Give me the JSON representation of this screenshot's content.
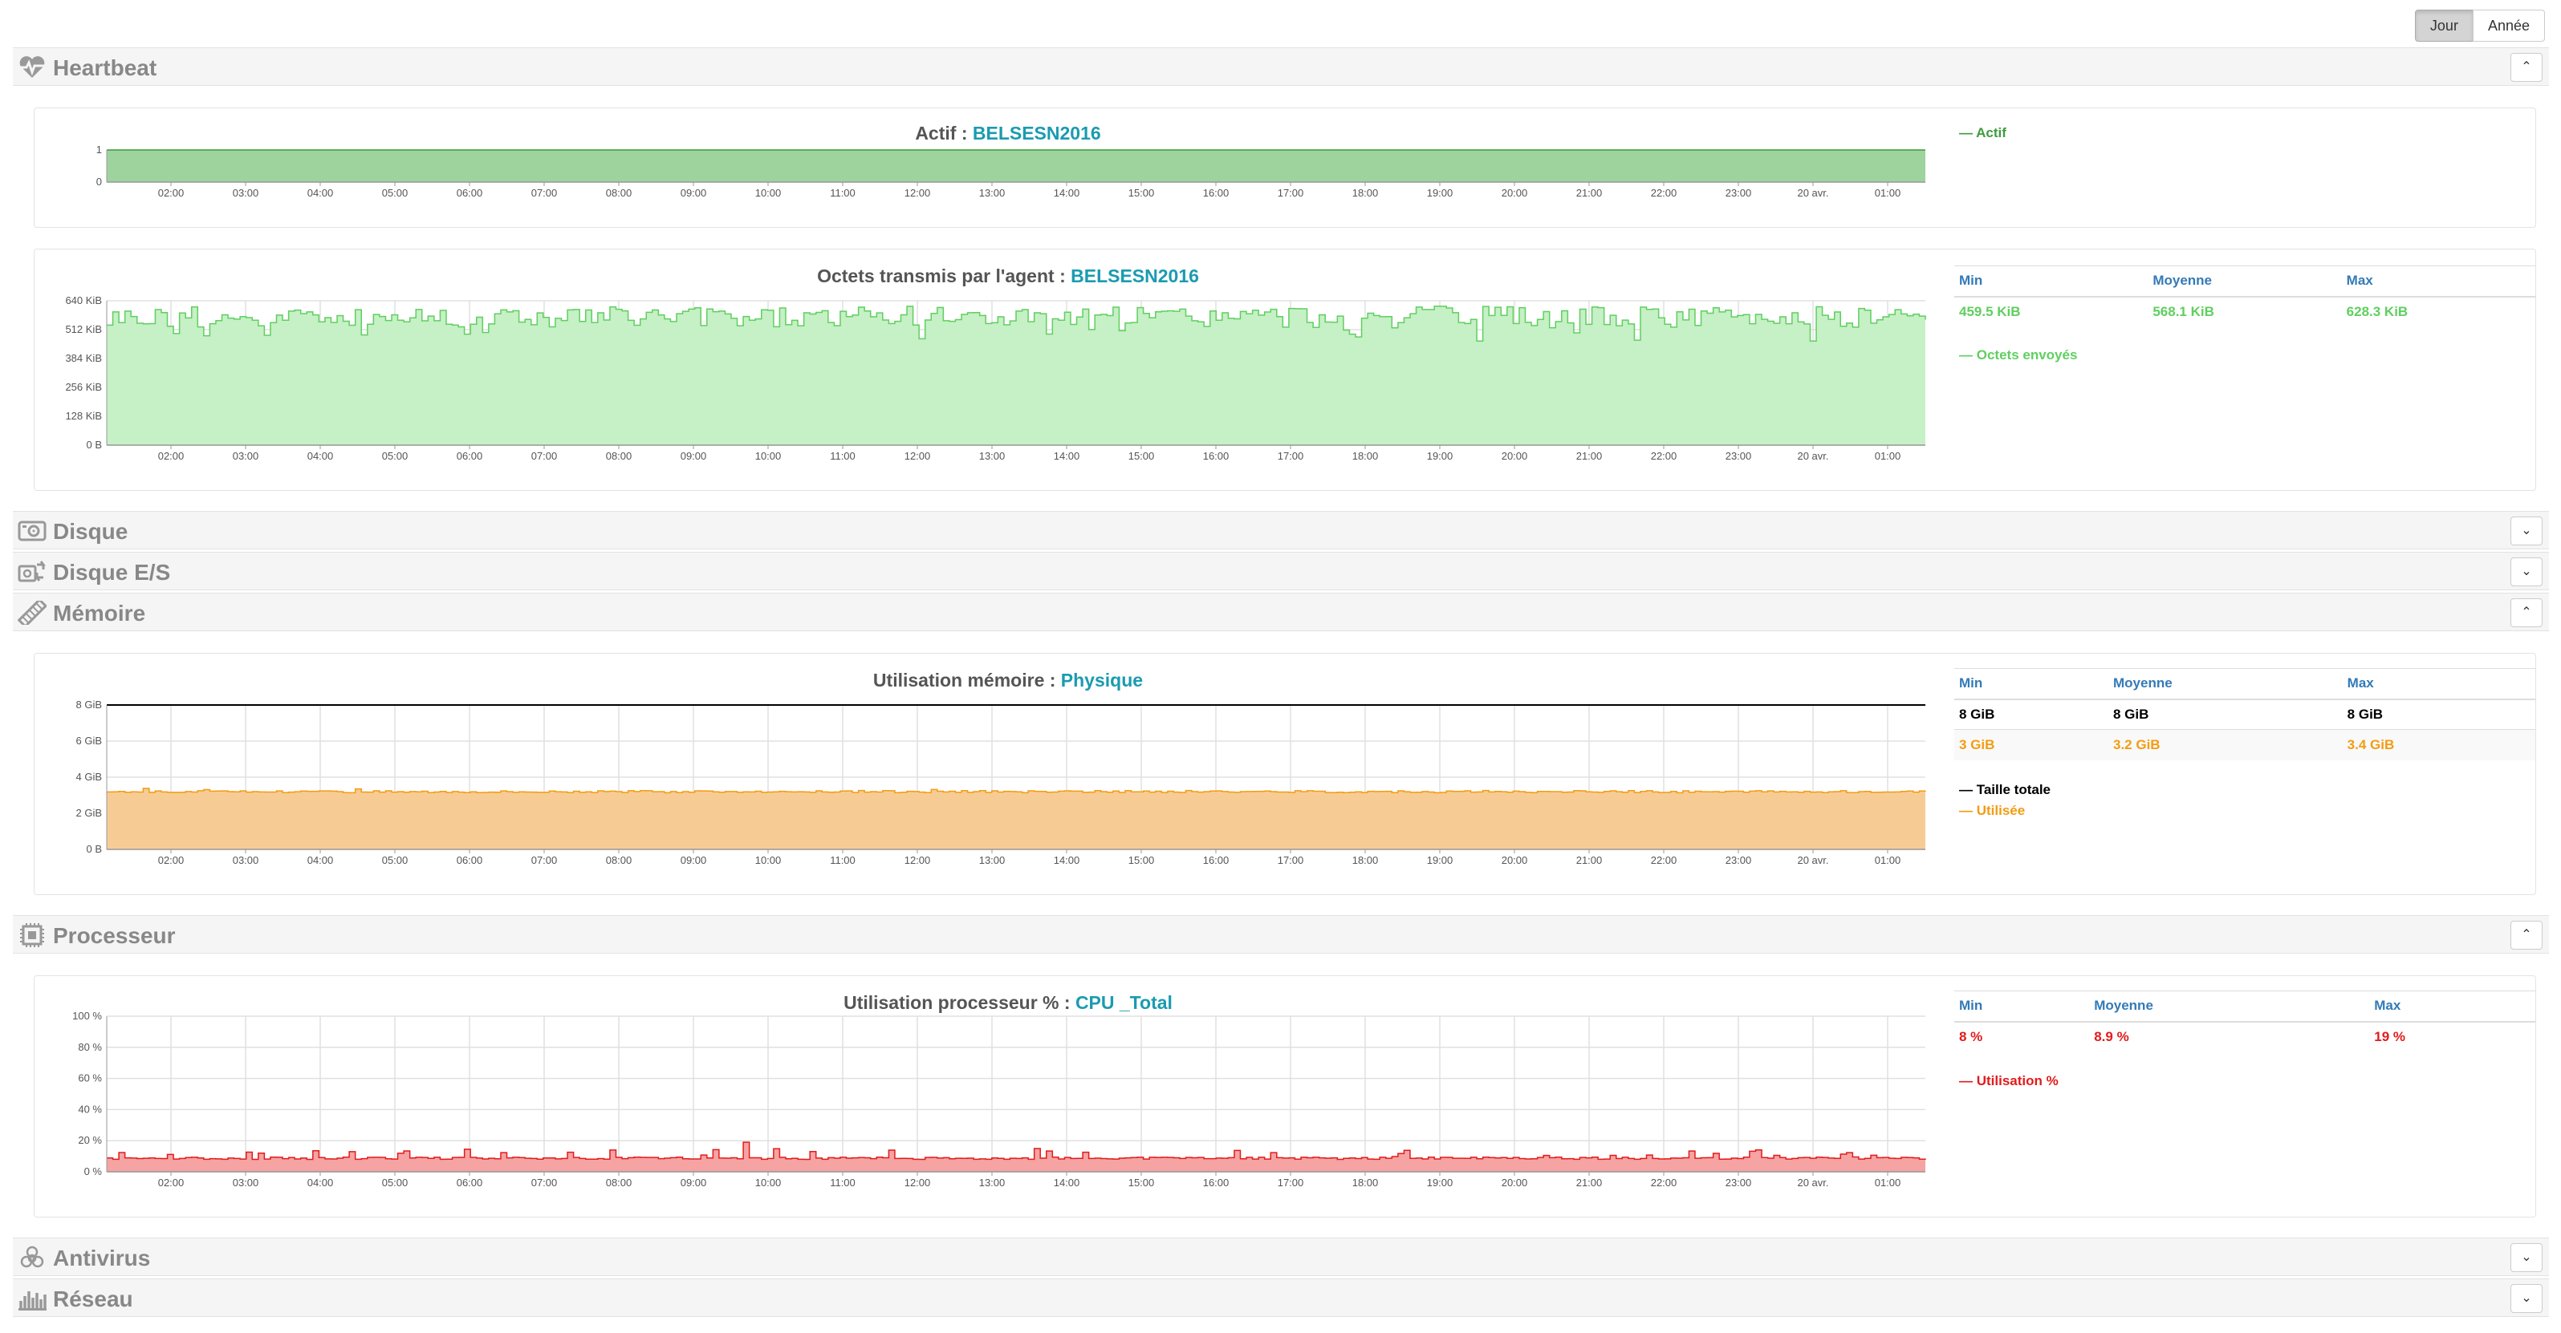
{
  "buttons": {
    "day": "Jour",
    "year": "Année"
  },
  "sections": {
    "heartbeat": "Heartbeat",
    "disque": "Disque",
    "disque_es": "Disque E/S",
    "memoire": "Mémoire",
    "processeur": "Processeur",
    "antivirus": "Antivirus",
    "reseau": "Réseau"
  },
  "toggle": {
    "up": "⌃",
    "down": "⌄"
  },
  "icons": {
    "heartbeat": "heartbeat-icon",
    "disque": "hdd-icon",
    "disque_es": "hdd-io-icon",
    "memoire": "memory-icon",
    "processeur": "cpu-icon",
    "antivirus": "biohazard-icon",
    "reseau": "network-icon"
  },
  "colors": {
    "actif": "#3f9b3f",
    "octets": "#5fcf5f",
    "memoire": "#f39c12",
    "taille": "#000000",
    "cpu": "#e31b1b",
    "accent": "#1a9bb0",
    "header": "#337ab7"
  },
  "charts": {
    "actif": {
      "title_prefix": "Actif : ",
      "title_value": "BELSESN2016",
      "legend": [
        "Actif"
      ]
    },
    "octets": {
      "title_prefix": "Octets transmis par l'agent : ",
      "title_value": "BELSESN2016",
      "stats_headers": [
        "Min",
        "Moyenne",
        "Max"
      ],
      "stats": [
        [
          "459.5 KiB",
          "568.1 KiB",
          "628.3 KiB"
        ]
      ],
      "legend": [
        "Octets envoyés"
      ]
    },
    "memoire": {
      "title_prefix": "Utilisation mémoire : ",
      "title_value": "Physique",
      "stats_headers": [
        "Min",
        "Moyenne",
        "Max"
      ],
      "stats": [
        [
          "8 GiB",
          "8 GiB",
          "8 GiB"
        ],
        [
          "3 GiB",
          "3.2 GiB",
          "3.4 GiB"
        ]
      ],
      "legend": [
        "Taille totale",
        "Utilisée"
      ]
    },
    "cpu": {
      "title_prefix": "Utilisation processeur % : ",
      "title_value": "CPU _Total",
      "stats_headers": [
        "Min",
        "Moyenne",
        "Max"
      ],
      "stats": [
        [
          "8 %",
          "8.9 %",
          "19 %"
        ]
      ],
      "legend": [
        "Utilisation %"
      ]
    }
  },
  "chart_data": [
    {
      "type": "area",
      "id": "actif",
      "title": "Actif : BELSESN2016",
      "x_ticks": [
        "02:00",
        "03:00",
        "04:00",
        "05:00",
        "06:00",
        "07:00",
        "08:00",
        "09:00",
        "10:00",
        "11:00",
        "12:00",
        "13:00",
        "14:00",
        "15:00",
        "16:00",
        "17:00",
        "18:00",
        "19:00",
        "20:00",
        "21:00",
        "22:00",
        "23:00",
        "20 avr.",
        "01:00"
      ],
      "y_ticks": [
        "0",
        "1"
      ],
      "ylim": [
        0,
        1
      ],
      "series": [
        {
          "name": "Actif",
          "value": 1
        }
      ],
      "grid": true,
      "legend": "right"
    },
    {
      "type": "area",
      "id": "octets",
      "title": "Octets transmis par l'agent : BELSESN2016",
      "x_ticks": [
        "02:00",
        "03:00",
        "04:00",
        "05:00",
        "06:00",
        "07:00",
        "08:00",
        "09:00",
        "10:00",
        "11:00",
        "12:00",
        "13:00",
        "14:00",
        "15:00",
        "16:00",
        "17:00",
        "18:00",
        "19:00",
        "20:00",
        "21:00",
        "22:00",
        "23:00",
        "20 avr.",
        "01:00"
      ],
      "y_ticks": [
        "0 B",
        "128 KiB",
        "256 KiB",
        "384 KiB",
        "512 KiB",
        "640 KiB"
      ],
      "ylim": [
        0,
        640
      ],
      "series": [
        {
          "name": "Octets envoyés",
          "min": 459.5,
          "avg": 568.1,
          "max": 628.3
        }
      ],
      "grid": true,
      "legend": "right"
    },
    {
      "type": "area",
      "id": "memoire",
      "title": "Utilisation mémoire : Physique",
      "x_ticks": [
        "02:00",
        "03:00",
        "04:00",
        "05:00",
        "06:00",
        "07:00",
        "08:00",
        "09:00",
        "10:00",
        "11:00",
        "12:00",
        "13:00",
        "14:00",
        "15:00",
        "16:00",
        "17:00",
        "18:00",
        "19:00",
        "20:00",
        "21:00",
        "22:00",
        "23:00",
        "20 avr.",
        "01:00"
      ],
      "y_ticks": [
        "0 B",
        "2 GiB",
        "4 GiB",
        "6 GiB",
        "8 GiB"
      ],
      "ylim": [
        0,
        8
      ],
      "series": [
        {
          "name": "Taille totale",
          "value": 8
        },
        {
          "name": "Utilisée",
          "min": 3,
          "avg": 3.2,
          "max": 3.4
        }
      ],
      "grid": true,
      "legend": "right"
    },
    {
      "type": "area",
      "id": "cpu",
      "title": "Utilisation processeur % : CPU _Total",
      "x_ticks": [
        "02:00",
        "03:00",
        "04:00",
        "05:00",
        "06:00",
        "07:00",
        "08:00",
        "09:00",
        "10:00",
        "11:00",
        "12:00",
        "13:00",
        "14:00",
        "15:00",
        "16:00",
        "17:00",
        "18:00",
        "19:00",
        "20:00",
        "21:00",
        "22:00",
        "23:00",
        "20 avr.",
        "01:00"
      ],
      "y_ticks": [
        "0 %",
        "20 %",
        "40 %",
        "60 %",
        "80 %",
        "100 %"
      ],
      "ylim": [
        0,
        100
      ],
      "series": [
        {
          "name": "Utilisation %",
          "min": 8,
          "avg": 8.9,
          "max": 19
        }
      ],
      "grid": true,
      "legend": "right"
    }
  ]
}
